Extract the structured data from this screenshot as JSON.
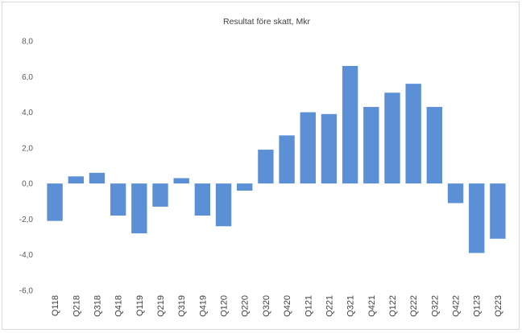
{
  "chart_data": {
    "type": "bar",
    "title": "Resultat före skatt, Mkr",
    "xlabel": "",
    "ylabel": "",
    "categories": [
      "Q118",
      "Q218",
      "Q318",
      "Q418",
      "Q119",
      "Q219",
      "Q319",
      "Q419",
      "Q120",
      "Q220",
      "Q320",
      "Q420",
      "Q121",
      "Q221",
      "Q321",
      "Q421",
      "Q122",
      "Q222",
      "Q322",
      "Q422",
      "Q123",
      "Q223"
    ],
    "values": [
      -2.1,
      0.4,
      0.6,
      -1.8,
      -2.8,
      -1.3,
      0.3,
      -1.8,
      -2.4,
      -0.4,
      1.9,
      2.7,
      4.0,
      3.9,
      6.6,
      4.3,
      5.1,
      5.6,
      4.3,
      -1.1,
      -3.9,
      -3.1
    ],
    "ylim": [
      -6,
      8
    ],
    "yticks": [
      "8,0",
      "6,0",
      "4,0",
      "2,0",
      "0,0",
      "-2,0",
      "-4,0",
      "-6,0"
    ],
    "grid": false,
    "bar_color": "#5b8fd6"
  }
}
